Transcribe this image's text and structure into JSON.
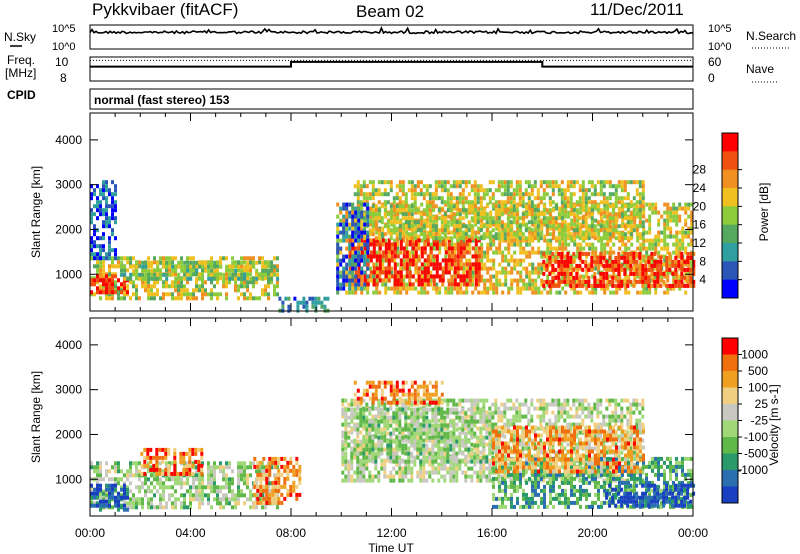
{
  "header": {
    "station": "Pykkvibaer (fitACF)",
    "beam": "Beam 02",
    "date": "11/Dec/2011"
  },
  "noise_panel": {
    "left_label": "N.Sky",
    "right_label": "N.Search",
    "left_ticks": [
      "10^5",
      "10^0"
    ],
    "right_ticks": [
      "10^5",
      "10^0"
    ]
  },
  "freq_panel": {
    "left_label_line1": "Freq.",
    "left_label_line2": "[MHz]",
    "left_ticks": [
      "10",
      "8"
    ],
    "right_label": "Nave",
    "right_ticks": [
      "60",
      "0"
    ],
    "freq_mhz": [
      {
        "t": 0.0,
        "v": 9.92
      },
      {
        "t": 8.0,
        "v": 9.92
      },
      {
        "t": 8.0,
        "v": 10.55
      },
      {
        "t": 18.0,
        "v": 10.55
      },
      {
        "t": 18.0,
        "v": 9.92
      },
      {
        "t": 24.0,
        "v": 9.92
      }
    ],
    "freq_dotted_mhz": 10.75
  },
  "cpid_panel": {
    "label": "CPID",
    "text": "normal (fast stereo) 153"
  },
  "x_axis": {
    "label": "Time UT",
    "ticks": [
      "00:00",
      "04:00",
      "08:00",
      "12:00",
      "16:00",
      "20:00",
      "00:00"
    ]
  },
  "chart_data": [
    {
      "type": "heatmap",
      "name": "power",
      "xlabel": "Time UT",
      "ylabel": "Slant Range [km]",
      "x_range_hours": [
        0,
        24
      ],
      "y_range_km": [
        180,
        4600
      ],
      "y_ticks": [
        "1000",
        "2000",
        "3000",
        "4000"
      ],
      "colorbar": {
        "label": "Power [dB]",
        "ticks": [
          "4",
          "8",
          "12",
          "16",
          "20",
          "24",
          "28"
        ],
        "colors": [
          "#0000ff",
          "#2a56b8",
          "#2f9fa0",
          "#54a860",
          "#8ccc3c",
          "#f0c020",
          "#f09020",
          "#f05010",
          "#ff0000"
        ],
        "range": [
          0,
          32
        ]
      },
      "regions": [
        {
          "t0": 0.0,
          "t1": 7.5,
          "r0": 500,
          "r1": 1400,
          "level": 0.55
        },
        {
          "t0": 0.0,
          "t1": 1.5,
          "r0": 600,
          "r1": 1000,
          "level": 0.95
        },
        {
          "t0": 1.2,
          "t1": 7.5,
          "r0": 900,
          "r1": 1300,
          "level": 0.45
        },
        {
          "t0": 0.0,
          "t1": 1.0,
          "r0": 1400,
          "r1": 3100,
          "level": 0.15
        },
        {
          "t0": 7.5,
          "t1": 9.5,
          "r0": 200,
          "r1": 500,
          "level": 0.25
        },
        {
          "t0": 9.8,
          "t1": 24.0,
          "r0": 600,
          "r1": 2600,
          "level": 0.6
        },
        {
          "t0": 10.3,
          "t1": 15.5,
          "r0": 800,
          "r1": 1800,
          "level": 0.92
        },
        {
          "t0": 18.0,
          "t1": 24.0,
          "r0": 700,
          "r1": 1500,
          "level": 0.9
        },
        {
          "t0": 10.5,
          "t1": 22.0,
          "r0": 1800,
          "r1": 3100,
          "level": 0.55
        },
        {
          "t0": 9.8,
          "t1": 11.0,
          "r0": 700,
          "r1": 2600,
          "level": 0.2
        }
      ]
    },
    {
      "type": "heatmap",
      "name": "velocity",
      "xlabel": "Time UT",
      "ylabel": "Slant Range [km]",
      "x_range_hours": [
        0,
        24
      ],
      "y_range_km": [
        180,
        4600
      ],
      "y_ticks": [
        "1000",
        "2000",
        "3000",
        "4000"
      ],
      "colorbar": {
        "label": "Velocity [m s-1]",
        "ticks": [
          "1000",
          "500",
          "100",
          "25",
          "-25",
          "-100",
          "-500",
          "-1000"
        ],
        "colors": [
          "#1840c0",
          "#2a70b0",
          "#2a9a6a",
          "#60b848",
          "#a0d878",
          "#c8c8c0",
          "#f0d080",
          "#f0a020",
          "#f07010",
          "#ff0000"
        ],
        "range": [
          -1000,
          1000
        ]
      },
      "regions": [
        {
          "t0": 0.0,
          "t1": 7.5,
          "r0": 400,
          "r1": 1400,
          "level": 0.45
        },
        {
          "t0": 0.0,
          "t1": 1.5,
          "r0": 300,
          "r1": 900,
          "level": 0.1
        },
        {
          "t0": 2.0,
          "t1": 4.5,
          "r0": 1100,
          "r1": 1700,
          "level": 0.8
        },
        {
          "t0": 6.5,
          "t1": 8.3,
          "r0": 500,
          "r1": 1500,
          "level": 0.78
        },
        {
          "t0": 10.0,
          "t1": 22.0,
          "r0": 1000,
          "r1": 2800,
          "level": 0.5
        },
        {
          "t0": 10.0,
          "t1": 16.0,
          "r0": 1400,
          "r1": 2600,
          "level": 0.45
        },
        {
          "t0": 16.0,
          "t1": 24.0,
          "r0": 400,
          "r1": 1500,
          "level": 0.3
        },
        {
          "t0": 20.5,
          "t1": 24.0,
          "r0": 400,
          "r1": 900,
          "level": 0.05
        },
        {
          "t0": 10.5,
          "t1": 14.0,
          "r0": 2700,
          "r1": 3200,
          "level": 0.8
        },
        {
          "t0": 16.0,
          "t1": 22.0,
          "r0": 1200,
          "r1": 2200,
          "level": 0.75
        }
      ]
    }
  ]
}
